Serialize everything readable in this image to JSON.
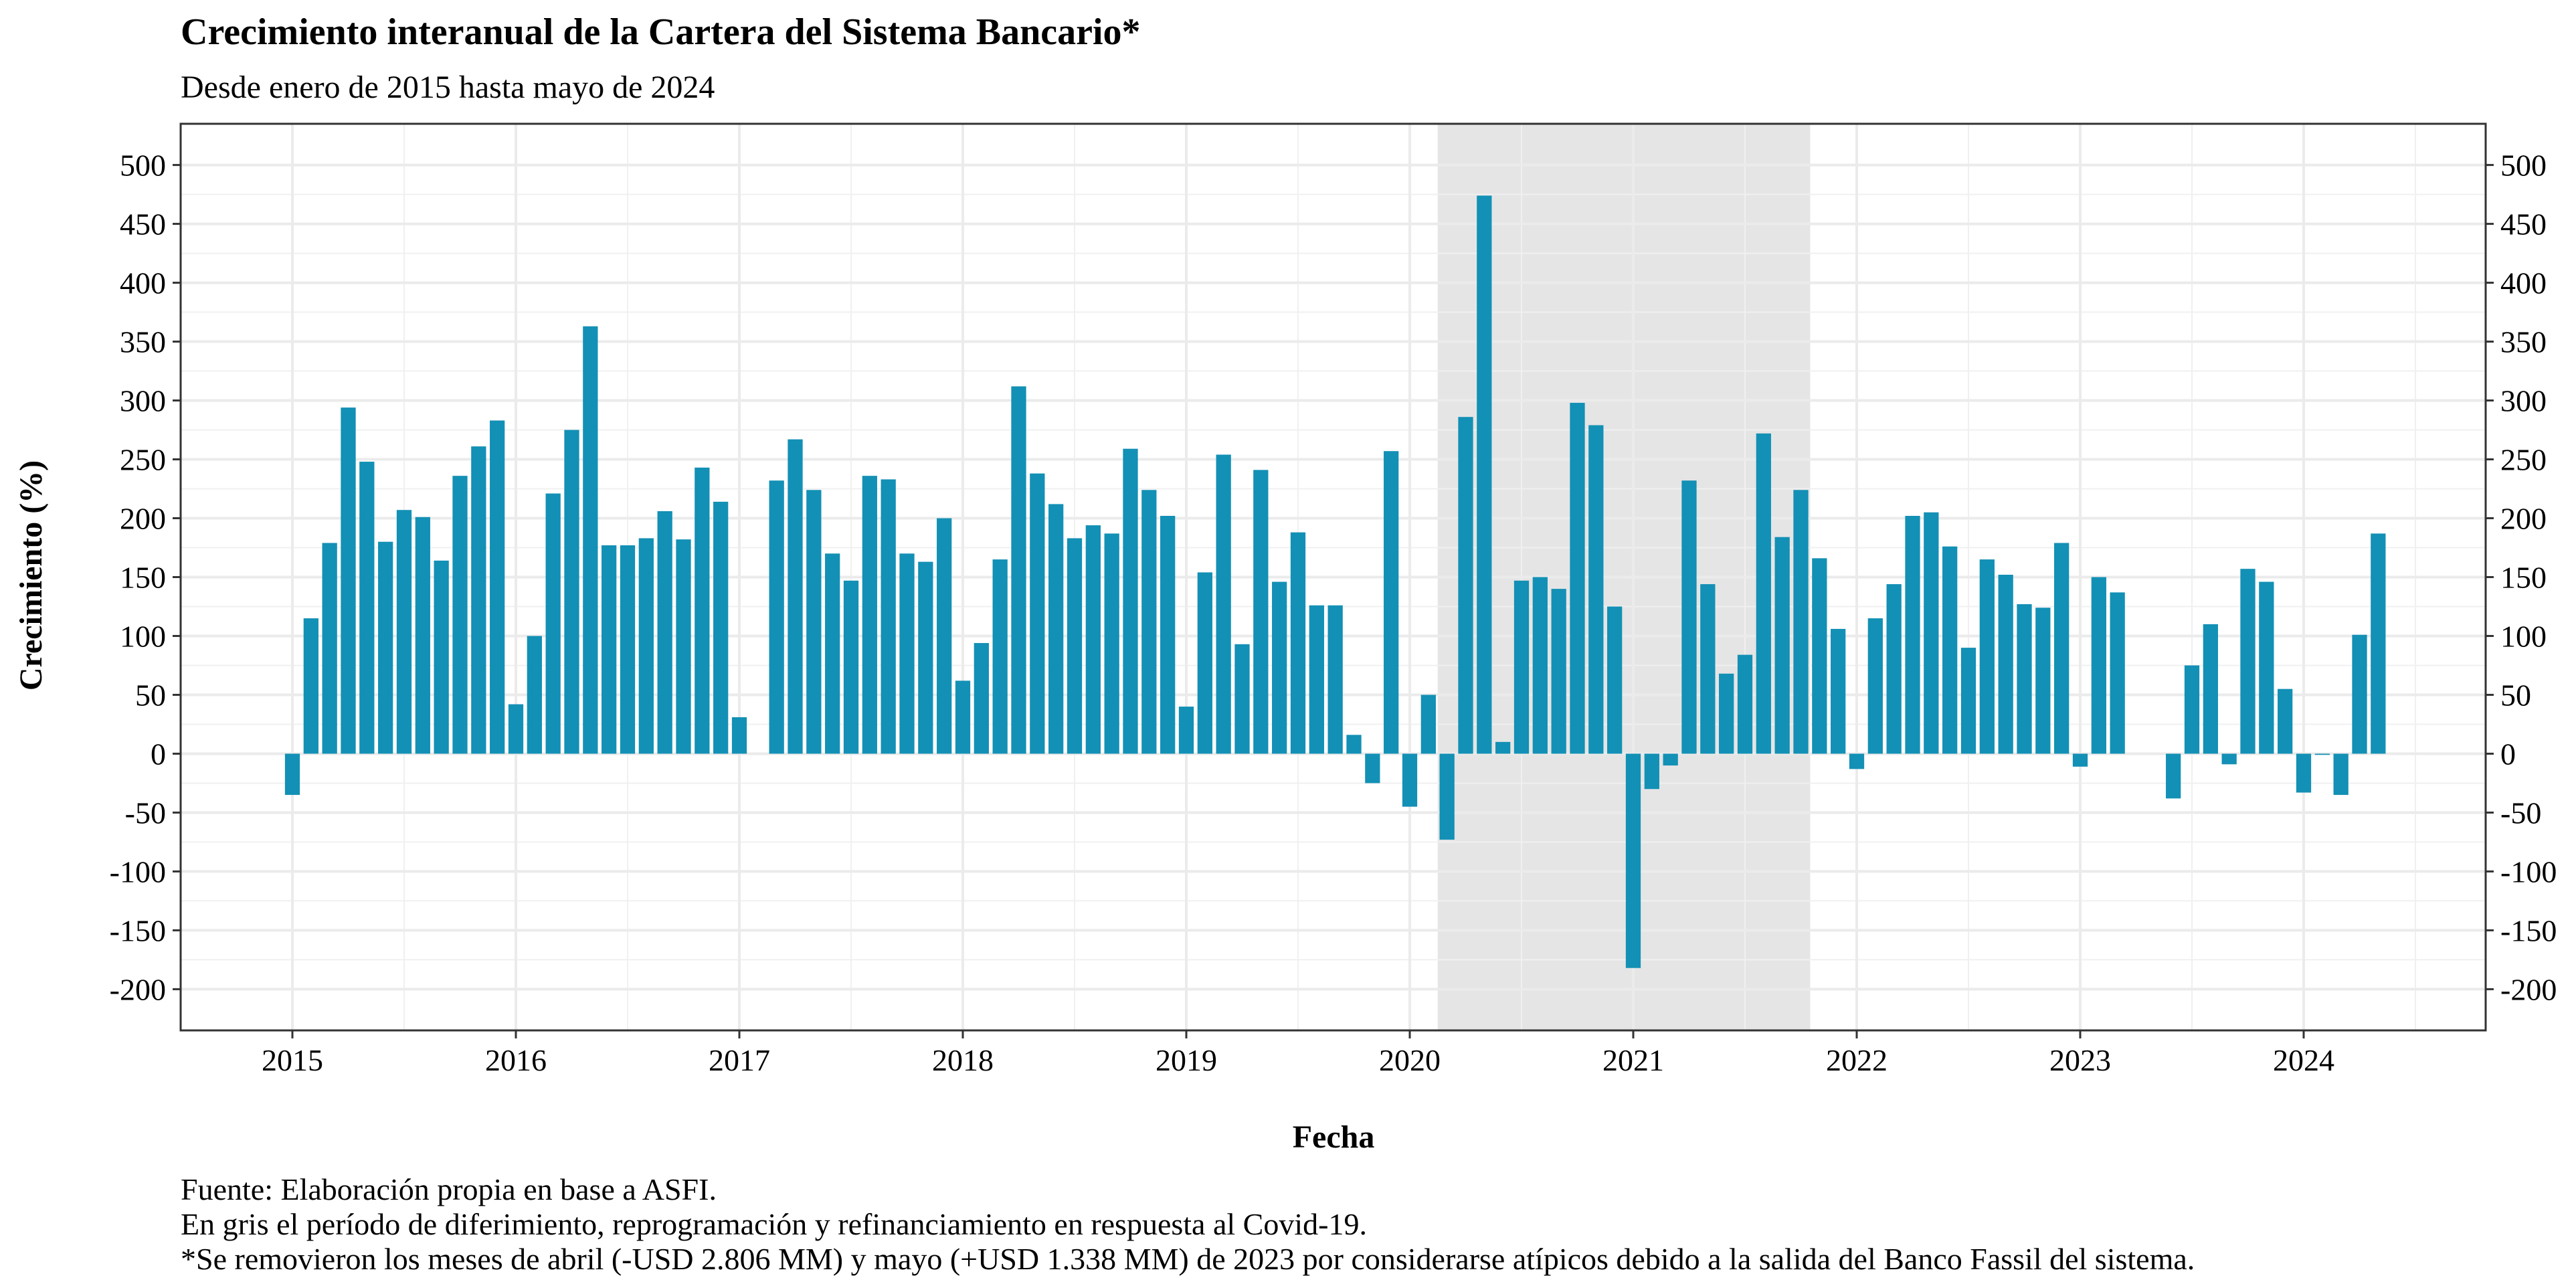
{
  "chart_data": {
    "type": "bar",
    "title": "Crecimiento interanual de la Cartera del Sistema Bancario*",
    "subtitle": "Desde enero de 2015 hasta mayo de 2024",
    "xlabel": "Fecha",
    "ylabel": "Crecimiento (%)",
    "caption": [
      "Fuente: Elaboración propia en base a ASFI.",
      "En gris el período de diferimiento, reprogramación y refinanciamiento en respuesta al Covid-19.",
      "*Se removieron los meses de abril (-USD 2.806 MM) y mayo (+USD 1.338 MM) de 2023 por considerarse atípicos debido a la salida del Banco Fassil del sistema."
    ],
    "ylim": [
      -235,
      535
    ],
    "y_ticks": [
      -200,
      -150,
      -100,
      -50,
      0,
      50,
      100,
      150,
      200,
      250,
      300,
      350,
      400,
      450,
      500
    ],
    "x_ticks": [
      "2015",
      "2016",
      "2017",
      "2018",
      "2019",
      "2020",
      "2021",
      "2022",
      "2023",
      "2024"
    ],
    "shaded_period": {
      "start": "2020-03",
      "end": "2021-10"
    },
    "bar_color": "#1390b5",
    "shade_color": "#e5e5e5",
    "start_month": "2015-01",
    "values": [
      -35,
      115,
      179,
      294,
      248,
      180,
      207,
      201,
      164,
      236,
      261,
      283,
      42,
      100,
      221,
      275,
      363,
      177,
      177,
      183,
      206,
      182,
      243,
      214,
      31,
      null,
      232,
      267,
      224,
      170,
      147,
      236,
      233,
      170,
      163,
      200,
      62,
      94,
      165,
      312,
      238,
      212,
      183,
      194,
      187,
      259,
      224,
      202,
      40,
      154,
      254,
      93,
      241,
      146,
      188,
      126,
      126,
      16,
      -25,
      257,
      -45,
      50,
      -73,
      286,
      474,
      10,
      147,
      150,
      140,
      298,
      279,
      125,
      -182,
      -30,
      -10,
      232,
      144,
      68,
      84,
      272,
      184,
      224,
      166,
      106,
      -13,
      115,
      144,
      202,
      205,
      176,
      90,
      165,
      152,
      127,
      124,
      179,
      -11,
      150,
      137,
      null,
      null,
      -38,
      75,
      110,
      -9,
      157,
      146,
      55,
      -33,
      -1,
      -35,
      101,
      187
    ]
  }
}
